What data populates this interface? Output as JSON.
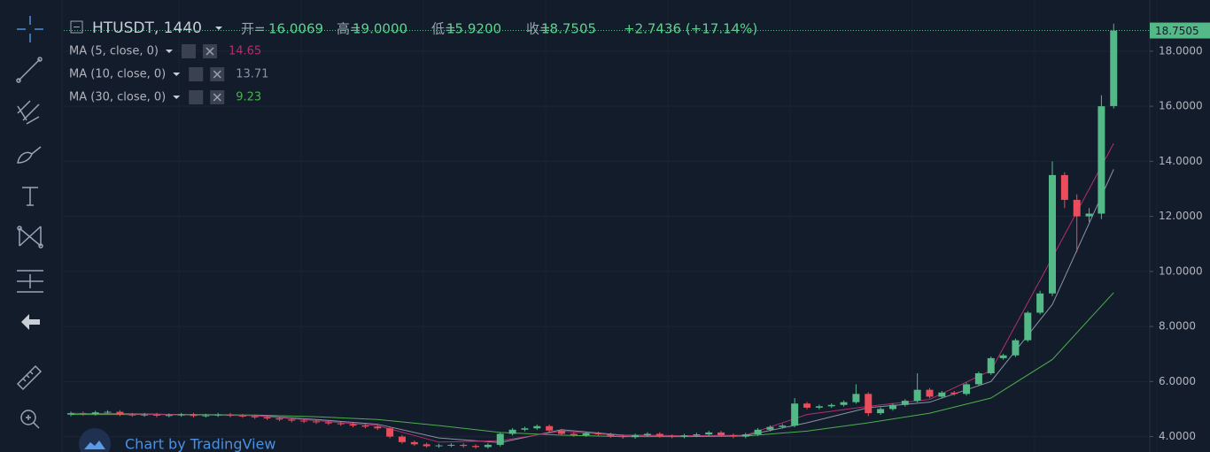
{
  "chart_data": {
    "type": "candlestick",
    "header": {
      "symbol": "HTUSDT, 1440",
      "open_tag": "开=",
      "high_tag": "高=",
      "low_tag": "低=",
      "close_tag": "收=",
      "high_label": "19.0000",
      "low_label": "15.9200",
      "change": "+2.7436 (+17.14%)"
    },
    "open": [
      4.8,
      4.85,
      4.82,
      4.88,
      4.9,
      4.8,
      4.78,
      4.8,
      4.76,
      4.78,
      4.8,
      4.75,
      4.77,
      4.8,
      4.76,
      4.74,
      4.7,
      4.66,
      4.62,
      4.58,
      4.55,
      4.52,
      4.48,
      4.45,
      4.4,
      4.36,
      4.3,
      4.0,
      3.8,
      3.72,
      3.65,
      3.68,
      3.7,
      3.66,
      3.62,
      3.7,
      4.1,
      4.25,
      4.3,
      4.38,
      4.22,
      4.1,
      4.05,
      4.12,
      4.08,
      4.02,
      3.98,
      4.05,
      4.1,
      4.02,
      4.0,
      4.04,
      4.08,
      4.15,
      4.05,
      4.0,
      4.08,
      4.25,
      4.35,
      4.4,
      5.2,
      5.05,
      5.1,
      5.15,
      5.25,
      5.55,
      4.85,
      5.0,
      5.15,
      5.3,
      5.7,
      5.45,
      5.6,
      5.55,
      5.9,
      6.3,
      6.85,
      6.95,
      7.5,
      8.5,
      9.2,
      13.5,
      12.6,
      12.0,
      12.1,
      16.0069
    ],
    "high": [
      4.91,
      4.91,
      4.94,
      4.96,
      4.96,
      4.86,
      4.86,
      4.86,
      4.84,
      4.86,
      4.86,
      4.83,
      4.86,
      4.86,
      4.82,
      4.8,
      4.76,
      4.72,
      4.68,
      4.64,
      4.61,
      4.58,
      4.54,
      4.51,
      4.46,
      4.42,
      4.36,
      4.06,
      3.86,
      3.78,
      3.74,
      3.76,
      3.76,
      3.72,
      3.76,
      4.16,
      4.31,
      4.36,
      4.44,
      4.44,
      4.28,
      4.16,
      4.18,
      4.18,
      4.14,
      4.08,
      4.11,
      4.16,
      4.16,
      4.08,
      4.1,
      4.14,
      4.21,
      4.21,
      4.11,
      4.14,
      4.31,
      4.41,
      4.46,
      5.4,
      5.26,
      5.16,
      5.21,
      5.31,
      5.9,
      5.61,
      5.06,
      5.21,
      5.36,
      6.3,
      5.76,
      5.66,
      5.66,
      5.96,
      6.36,
      6.91,
      7.01,
      7.56,
      8.56,
      9.3,
      14.0,
      13.6,
      12.8,
      12.3,
      16.4,
      19.0
    ],
    "low": [
      4.74,
      4.76,
      4.76,
      4.82,
      4.74,
      4.72,
      4.72,
      4.7,
      4.7,
      4.72,
      4.69,
      4.69,
      4.71,
      4.7,
      4.68,
      4.64,
      4.6,
      4.56,
      4.52,
      4.49,
      4.46,
      4.42,
      4.39,
      4.34,
      4.3,
      4.24,
      3.94,
      3.74,
      3.66,
      3.59,
      3.59,
      3.62,
      3.6,
      3.56,
      3.56,
      3.64,
      4.04,
      4.19,
      4.24,
      4.16,
      4.04,
      3.99,
      3.99,
      4.02,
      3.96,
      3.92,
      3.92,
      3.99,
      3.96,
      3.94,
      3.94,
      3.98,
      4.02,
      3.99,
      3.94,
      3.94,
      4.02,
      4.19,
      4.29,
      4.34,
      4.99,
      4.99,
      5.04,
      5.09,
      5.19,
      4.75,
      4.79,
      4.94,
      5.09,
      5.24,
      5.39,
      5.39,
      5.49,
      5.49,
      5.84,
      6.24,
      6.79,
      6.89,
      7.44,
      8.44,
      9.1,
      12.3,
      10.7,
      11.8,
      11.9,
      15.92
    ],
    "close": [
      4.85,
      4.82,
      4.88,
      4.9,
      4.8,
      4.78,
      4.8,
      4.76,
      4.78,
      4.8,
      4.75,
      4.77,
      4.8,
      4.76,
      4.74,
      4.7,
      4.66,
      4.62,
      4.58,
      4.55,
      4.52,
      4.48,
      4.45,
      4.4,
      4.36,
      4.3,
      4.0,
      3.8,
      3.72,
      3.65,
      3.68,
      3.7,
      3.66,
      3.62,
      3.7,
      4.1,
      4.25,
      4.3,
      4.38,
      4.22,
      4.1,
      4.05,
      4.12,
      4.08,
      4.02,
      3.98,
      4.05,
      4.1,
      4.02,
      4.0,
      4.04,
      4.08,
      4.15,
      4.05,
      4.0,
      4.08,
      4.25,
      4.35,
      4.4,
      5.2,
      5.05,
      5.1,
      5.15,
      5.25,
      5.55,
      4.85,
      5.0,
      5.15,
      5.3,
      5.7,
      5.45,
      5.6,
      5.55,
      5.9,
      6.3,
      6.85,
      6.95,
      7.5,
      8.5,
      9.2,
      13.5,
      12.6,
      12.0,
      12.1,
      16.0,
      18.7505
    ],
    "up_color": "#53b987",
    "down_color": "#eb4d5c",
    "series": [
      {
        "name": "MA (30, close, 0)",
        "color": "#4caf50",
        "x": [
          0,
          5,
          10,
          15,
          20,
          25,
          30,
          35,
          40,
          45,
          50,
          55,
          60,
          65,
          70,
          75,
          80,
          85
        ],
        "values": [
          4.8,
          4.8,
          4.8,
          4.78,
          4.72,
          4.62,
          4.4,
          4.15,
          4.05,
          4.0,
          4.0,
          4.02,
          4.2,
          4.5,
          4.85,
          5.4,
          6.8,
          9.23
        ]
      },
      {
        "name": "MA (10, close, 0)",
        "color": "#8a93a6",
        "x": [
          0,
          5,
          10,
          15,
          20,
          25,
          30,
          35,
          40,
          45,
          50,
          55,
          60,
          65,
          70,
          75,
          80,
          85
        ],
        "values": [
          4.84,
          4.83,
          4.79,
          4.77,
          4.62,
          4.45,
          3.95,
          3.78,
          4.25,
          4.05,
          4.03,
          4.04,
          4.5,
          5.05,
          5.25,
          6.0,
          8.8,
          13.71
        ]
      },
      {
        "name": "MA (5, close, 0)",
        "color": "#b0306f",
        "x": [
          0,
          5,
          10,
          15,
          20,
          25,
          30,
          35,
          40,
          45,
          50,
          55,
          60,
          65,
          70,
          75,
          80,
          85
        ],
        "values": [
          4.84,
          4.82,
          4.78,
          4.76,
          4.58,
          4.4,
          3.8,
          3.85,
          4.2,
          4.03,
          4.03,
          4.05,
          4.8,
          5.1,
          5.35,
          6.4,
          10.5,
          14.65
        ]
      }
    ],
    "ylim": [
      3.44,
      19.86
    ],
    "yticks": [
      {
        "value": 4,
        "label": "4.0000"
      },
      {
        "value": 6,
        "label": "6.0000"
      },
      {
        "value": 8,
        "label": "8.0000"
      },
      {
        "value": 10,
        "label": "10.0000"
      },
      {
        "value": 12,
        "label": "12.0000"
      },
      {
        "value": 14,
        "label": "14.0000"
      },
      {
        "value": 16,
        "label": "16.0000"
      },
      {
        "value": 18,
        "label": "18.0000"
      }
    ],
    "grid": true,
    "attribution": "Chart by TradingView"
  }
}
